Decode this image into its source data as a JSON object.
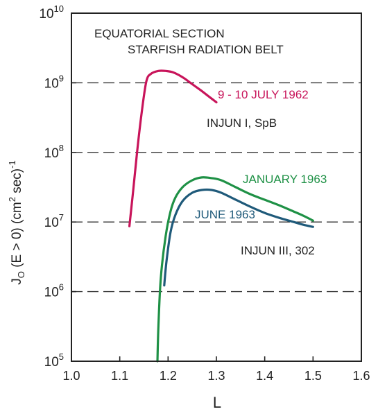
{
  "chart_data": {
    "type": "line",
    "title": "",
    "xlabel": "L",
    "ylabel_main": "J",
    "ylabel_sub": "O",
    "ylabel_rest": " (E > 0)  (cm",
    "ylabel_sup1": "2",
    "ylabel_rest2": " sec)",
    "ylabel_sup2": "-1",
    "xlim": [
      1.0,
      1.6
    ],
    "ylim_exp": [
      5,
      10
    ],
    "y_scale": "log",
    "x_ticks": [
      "1.0",
      "1.1",
      "1.2",
      "1.3",
      "1.4",
      "1.5",
      "1.6"
    ],
    "x_tick_values": [
      1.0,
      1.1,
      1.2,
      1.3,
      1.4,
      1.5,
      1.6
    ],
    "y_tick_base": "10",
    "y_tick_exponents": [
      "5",
      "6",
      "7",
      "8",
      "9",
      "10"
    ],
    "dashed_gridlines_at_exp": [
      6,
      7,
      8,
      9
    ],
    "annotations": {
      "line1": "EQUATORIAL SECTION",
      "line2": "STARFISH RADIATION BELT",
      "injun1": "INJUN I,  SpB",
      "injun3": "INJUN III, 302"
    },
    "series": [
      {
        "name": "9 - 10 JULY 1962",
        "color": "#c8145a",
        "points": [
          [
            1.12,
            6.94
          ],
          [
            1.127,
            7.4
          ],
          [
            1.135,
            7.95
          ],
          [
            1.145,
            8.55
          ],
          [
            1.155,
            9.02
          ],
          [
            1.165,
            9.13
          ],
          [
            1.18,
            9.17
          ],
          [
            1.195,
            9.17
          ],
          [
            1.21,
            9.15
          ],
          [
            1.23,
            9.08
          ],
          [
            1.25,
            8.98
          ],
          [
            1.27,
            8.88
          ],
          [
            1.285,
            8.8
          ],
          [
            1.3,
            8.72
          ]
        ]
      },
      {
        "name": "JANUARY 1963",
        "color": "#1f9146",
        "points": [
          [
            1.178,
            5.0
          ],
          [
            1.18,
            5.5
          ],
          [
            1.185,
            6.2
          ],
          [
            1.195,
            6.8
          ],
          [
            1.205,
            7.15
          ],
          [
            1.215,
            7.35
          ],
          [
            1.23,
            7.5
          ],
          [
            1.25,
            7.6
          ],
          [
            1.27,
            7.64
          ],
          [
            1.29,
            7.63
          ],
          [
            1.31,
            7.6
          ],
          [
            1.34,
            7.5
          ],
          [
            1.37,
            7.4
          ],
          [
            1.4,
            7.32
          ],
          [
            1.43,
            7.24
          ],
          [
            1.46,
            7.15
          ],
          [
            1.48,
            7.09
          ],
          [
            1.5,
            7.02
          ]
        ]
      },
      {
        "name": "JUNE 1963",
        "color": "#1f5a7a",
        "points": [
          [
            1.192,
            6.09
          ],
          [
            1.197,
            6.45
          ],
          [
            1.205,
            6.85
          ],
          [
            1.215,
            7.1
          ],
          [
            1.23,
            7.3
          ],
          [
            1.25,
            7.42
          ],
          [
            1.27,
            7.46
          ],
          [
            1.29,
            7.46
          ],
          [
            1.31,
            7.42
          ],
          [
            1.34,
            7.32
          ],
          [
            1.37,
            7.22
          ],
          [
            1.4,
            7.13
          ],
          [
            1.43,
            7.06
          ],
          [
            1.46,
            7.0
          ],
          [
            1.48,
            6.96
          ],
          [
            1.5,
            6.93
          ]
        ]
      }
    ]
  }
}
